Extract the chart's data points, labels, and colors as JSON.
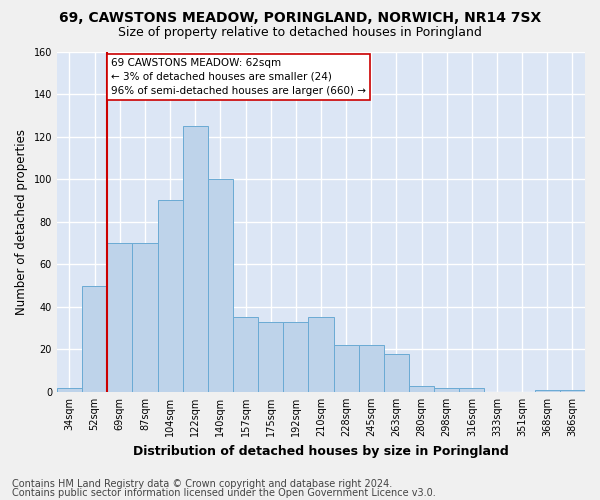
{
  "title_line1": "69, CAWSTONS MEADOW, PORINGLAND, NORWICH, NR14 7SX",
  "title_line2": "Size of property relative to detached houses in Poringland",
  "xlabel": "Distribution of detached houses by size in Poringland",
  "ylabel": "Number of detached properties",
  "categories": [
    "34sqm",
    "52sqm",
    "69sqm",
    "87sqm",
    "104sqm",
    "122sqm",
    "140sqm",
    "157sqm",
    "175sqm",
    "192sqm",
    "210sqm",
    "228sqm",
    "245sqm",
    "263sqm",
    "280sqm",
    "298sqm",
    "316sqm",
    "333sqm",
    "351sqm",
    "368sqm",
    "386sqm"
  ],
  "values": [
    2,
    50,
    70,
    70,
    90,
    125,
    100,
    35,
    33,
    33,
    35,
    22,
    22,
    18,
    3,
    2,
    2,
    0,
    0,
    1,
    1
  ],
  "bar_color": "#bed3ea",
  "bar_edge_color": "#6aaad4",
  "vline_x_index": 2,
  "vline_color": "#cc0000",
  "annotation_text": "69 CAWSTONS MEADOW: 62sqm\n← 3% of detached houses are smaller (24)\n96% of semi-detached houses are larger (660) →",
  "annotation_box_color": "#ffffff",
  "annotation_box_edge_color": "#cc0000",
  "ylim": [
    0,
    160
  ],
  "yticks": [
    0,
    20,
    40,
    60,
    80,
    100,
    120,
    140,
    160
  ],
  "background_color": "#dce6f5",
  "grid_color": "#ffffff",
  "footer_line1": "Contains HM Land Registry data © Crown copyright and database right 2024.",
  "footer_line2": "Contains public sector information licensed under the Open Government Licence v3.0.",
  "title_fontsize": 10,
  "subtitle_fontsize": 9,
  "axis_label_fontsize": 8.5,
  "tick_fontsize": 7,
  "footer_fontsize": 7,
  "annotation_fontsize": 7.5
}
